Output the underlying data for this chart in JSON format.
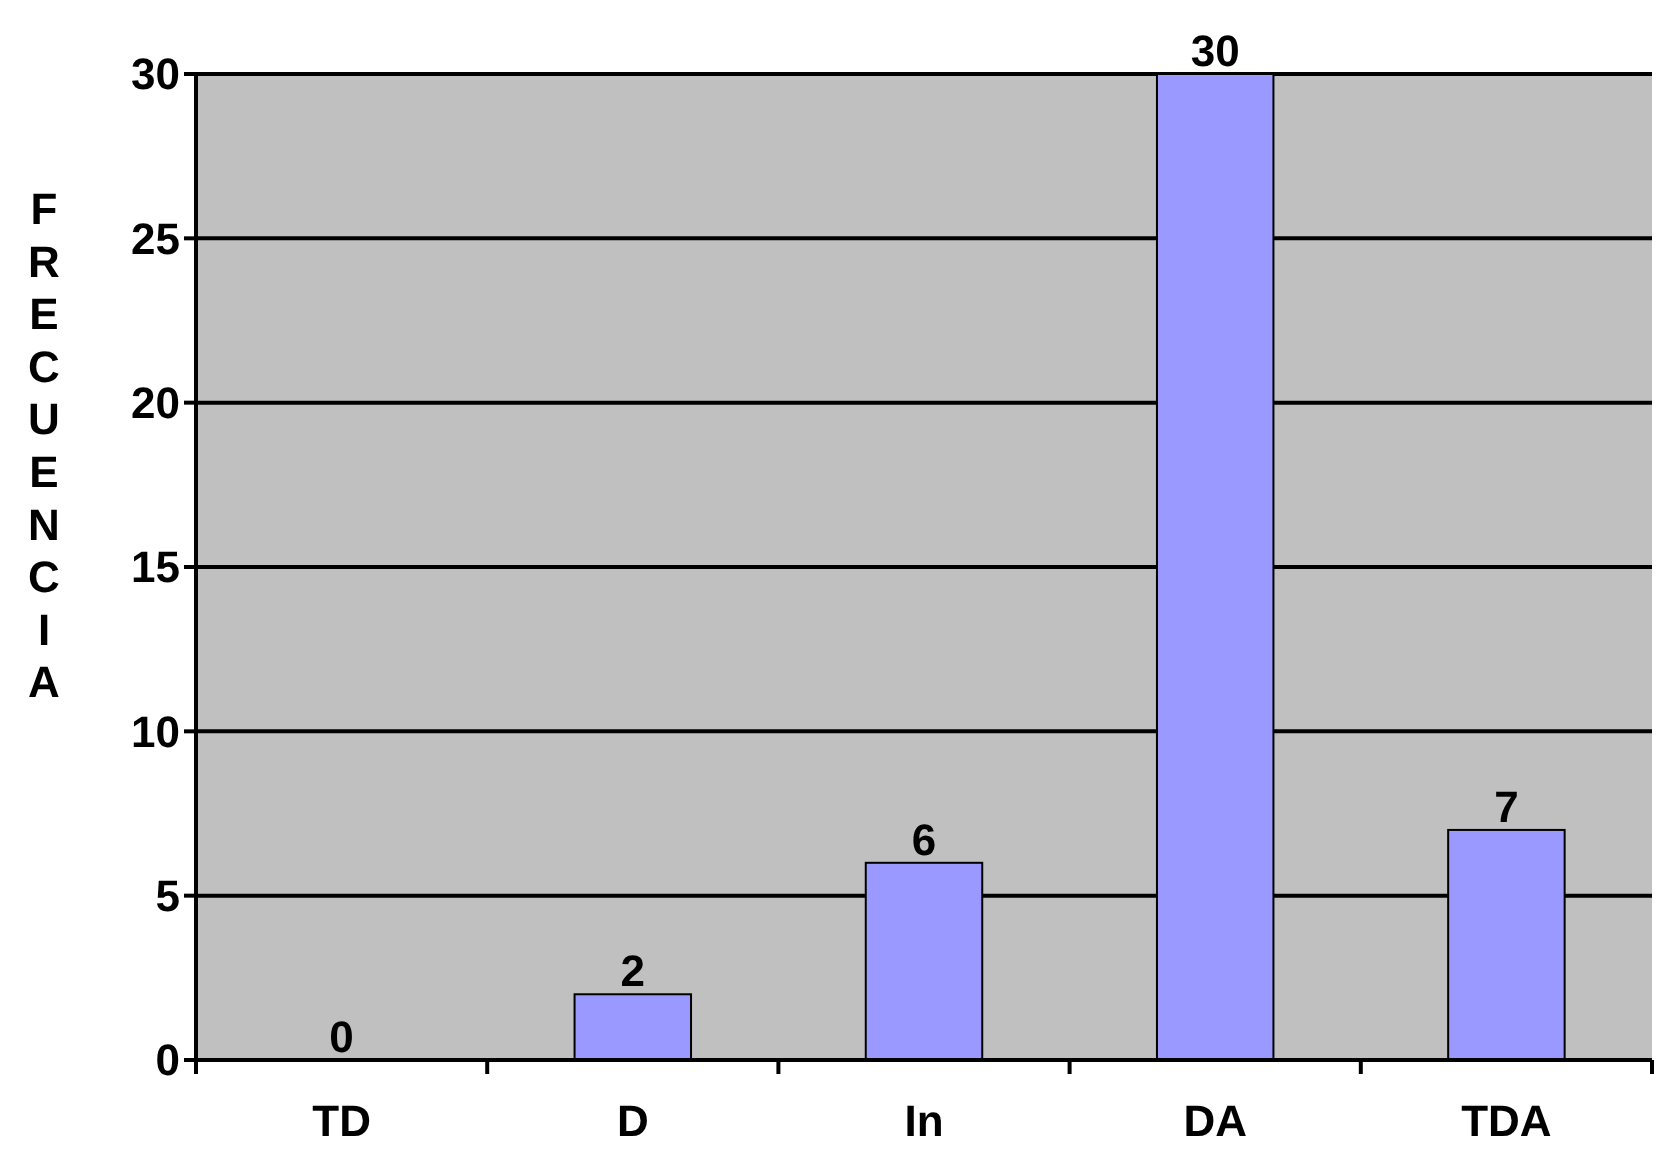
{
  "chart_data": {
    "type": "bar",
    "ylabel": "FRECUENCIA",
    "categories": [
      "TD",
      "D",
      "In",
      "DA",
      "TDA"
    ],
    "values": [
      0,
      2,
      6,
      30,
      7
    ],
    "color": "#9999ff",
    "ylim": [
      0,
      30
    ],
    "yticks": [
      0,
      5,
      10,
      15,
      20,
      25,
      30
    ],
    "grid": "y",
    "data_labels": true
  }
}
